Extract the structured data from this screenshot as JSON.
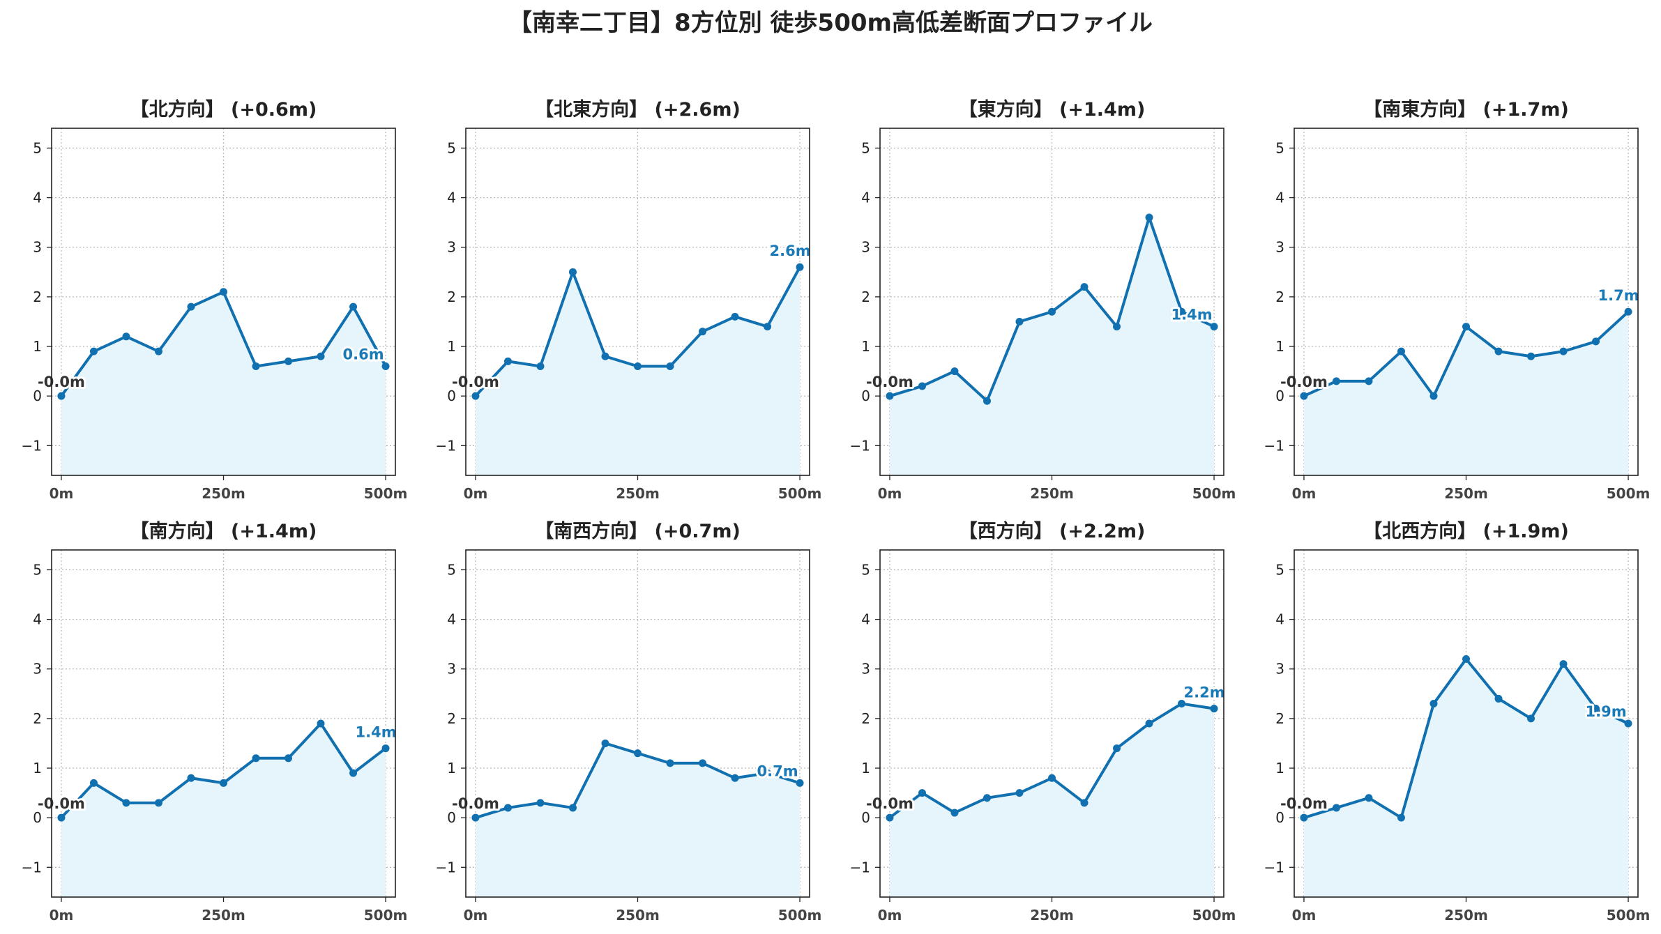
{
  "figure_title": "【南幸二丁目】8方位別 徒歩500m高低差断面プロファイル",
  "colors": {
    "line": "#1170b0",
    "fill": "#e6f5fb",
    "end_label": "#1a7ab8",
    "start_label": "#333333",
    "grid": "#bbbbbb"
  },
  "chart_data": [
    {
      "type": "area",
      "title": "【北方向】 (+0.6m)",
      "x": [
        0,
        50,
        100,
        150,
        200,
        250,
        300,
        350,
        400,
        450,
        500
      ],
      "values": [
        0.0,
        0.9,
        1.2,
        0.9,
        1.8,
        2.1,
        0.6,
        0.7,
        0.8,
        1.8,
        0.6
      ],
      "start_label": "-0.0m",
      "end_label": "0.6m",
      "xticks": [
        "0m",
        "250m",
        "500m"
      ],
      "yticks": [
        "−1",
        "0",
        "1",
        "2",
        "3",
        "4",
        "5"
      ],
      "ylim": [
        -1.6,
        5.4
      ],
      "xlim": [
        -15,
        515
      ],
      "grid": true
    },
    {
      "type": "area",
      "title": "【北東方向】 (+2.6m)",
      "x": [
        0,
        50,
        100,
        150,
        200,
        250,
        300,
        350,
        400,
        450,
        500
      ],
      "values": [
        0.0,
        0.7,
        0.6,
        2.5,
        0.8,
        0.6,
        0.6,
        1.3,
        1.6,
        1.4,
        2.6
      ],
      "start_label": "-0.0m",
      "end_label": "2.6m",
      "xticks": [
        "0m",
        "250m",
        "500m"
      ],
      "yticks": [
        "−1",
        "0",
        "1",
        "2",
        "3",
        "4",
        "5"
      ],
      "ylim": [
        -1.6,
        5.4
      ],
      "xlim": [
        -15,
        515
      ],
      "grid": true
    },
    {
      "type": "area",
      "title": "【東方向】 (+1.4m)",
      "x": [
        0,
        50,
        100,
        150,
        200,
        250,
        300,
        350,
        400,
        450,
        500
      ],
      "values": [
        0.0,
        0.2,
        0.5,
        -0.1,
        1.5,
        1.7,
        2.2,
        1.4,
        3.6,
        1.7,
        1.4
      ],
      "start_label": "-0.0m",
      "end_label": "1.4m",
      "xticks": [
        "0m",
        "250m",
        "500m"
      ],
      "yticks": [
        "−1",
        "0",
        "1",
        "2",
        "3",
        "4",
        "5"
      ],
      "ylim": [
        -1.6,
        5.4
      ],
      "xlim": [
        -15,
        515
      ],
      "grid": true
    },
    {
      "type": "area",
      "title": "【南東方向】 (+1.7m)",
      "x": [
        0,
        50,
        100,
        150,
        200,
        250,
        300,
        350,
        400,
        450,
        500
      ],
      "values": [
        0.0,
        0.3,
        0.3,
        0.9,
        0.0,
        1.4,
        0.9,
        0.8,
        0.9,
        1.1,
        1.7
      ],
      "start_label": "-0.0m",
      "end_label": "1.7m",
      "xticks": [
        "0m",
        "250m",
        "500m"
      ],
      "yticks": [
        "−1",
        "0",
        "1",
        "2",
        "3",
        "4",
        "5"
      ],
      "ylim": [
        -1.6,
        5.4
      ],
      "xlim": [
        -15,
        515
      ],
      "grid": true
    },
    {
      "type": "area",
      "title": "【南方向】 (+1.4m)",
      "x": [
        0,
        50,
        100,
        150,
        200,
        250,
        300,
        350,
        400,
        450,
        500
      ],
      "values": [
        0.0,
        0.7,
        0.3,
        0.3,
        0.8,
        0.7,
        1.2,
        1.2,
        1.9,
        0.9,
        1.4
      ],
      "start_label": "-0.0m",
      "end_label": "1.4m",
      "xticks": [
        "0m",
        "250m",
        "500m"
      ],
      "yticks": [
        "−1",
        "0",
        "1",
        "2",
        "3",
        "4",
        "5"
      ],
      "ylim": [
        -1.6,
        5.4
      ],
      "xlim": [
        -15,
        515
      ],
      "grid": true
    },
    {
      "type": "area",
      "title": "【南西方向】 (+0.7m)",
      "x": [
        0,
        50,
        100,
        150,
        200,
        250,
        300,
        350,
        400,
        450,
        500
      ],
      "values": [
        0.0,
        0.2,
        0.3,
        0.2,
        1.5,
        1.3,
        1.1,
        1.1,
        0.8,
        0.9,
        0.7
      ],
      "start_label": "-0.0m",
      "end_label": "0.7m",
      "xticks": [
        "0m",
        "250m",
        "500m"
      ],
      "yticks": [
        "−1",
        "0",
        "1",
        "2",
        "3",
        "4",
        "5"
      ],
      "ylim": [
        -1.6,
        5.4
      ],
      "xlim": [
        -15,
        515
      ],
      "grid": true
    },
    {
      "type": "area",
      "title": "【西方向】 (+2.2m)",
      "x": [
        0,
        50,
        100,
        150,
        200,
        250,
        300,
        350,
        400,
        450,
        500
      ],
      "values": [
        0.0,
        0.5,
        0.1,
        0.4,
        0.5,
        0.8,
        0.3,
        1.4,
        1.9,
        2.3,
        2.2
      ],
      "start_label": "-0.0m",
      "end_label": "2.2m",
      "xticks": [
        "0m",
        "250m",
        "500m"
      ],
      "yticks": [
        "−1",
        "0",
        "1",
        "2",
        "3",
        "4",
        "5"
      ],
      "ylim": [
        -1.6,
        5.4
      ],
      "xlim": [
        -15,
        515
      ],
      "grid": true
    },
    {
      "type": "area",
      "title": "【北西方向】 (+1.9m)",
      "x": [
        0,
        50,
        100,
        150,
        200,
        250,
        300,
        350,
        400,
        450,
        500
      ],
      "values": [
        0.0,
        0.2,
        0.4,
        0.0,
        2.3,
        3.2,
        2.4,
        2.0,
        3.1,
        2.2,
        1.9
      ],
      "start_label": "-0.0m",
      "end_label": "1.9m",
      "xticks": [
        "0m",
        "250m",
        "500m"
      ],
      "yticks": [
        "−1",
        "0",
        "1",
        "2",
        "3",
        "4",
        "5"
      ],
      "ylim": [
        -1.6,
        5.4
      ],
      "xlim": [
        -15,
        515
      ],
      "grid": true
    }
  ]
}
